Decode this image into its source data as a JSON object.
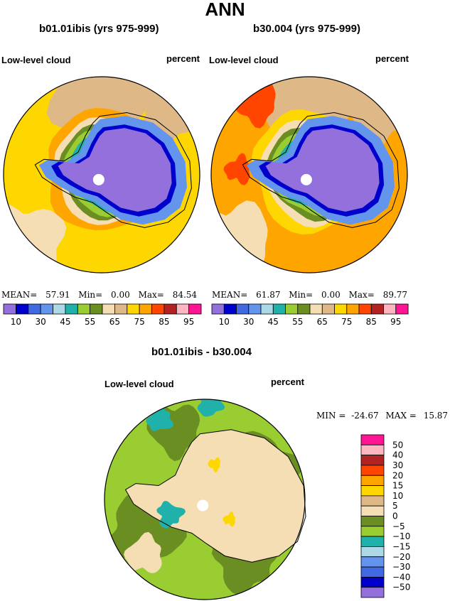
{
  "page": {
    "title": "ANN"
  },
  "colors": {
    "abs_palette": [
      "#9370db",
      "#0000cd",
      "#4169e1",
      "#6495ed",
      "#add8e6",
      "#20b2aa",
      "#9acd32",
      "#6b8e23",
      "#f5deb3",
      "#deb887",
      "#ffd700",
      "#ffa500",
      "#ff4500",
      "#b22222",
      "#ffb6c1",
      "#ff1493"
    ],
    "diff_palette": [
      "#9370db",
      "#0000cd",
      "#4169e1",
      "#6495ed",
      "#add8e6",
      "#20b2aa",
      "#9acd32",
      "#6b8e23",
      "#f5deb3",
      "#deb887",
      "#ffd700",
      "#ffa500",
      "#ff4500",
      "#b22222",
      "#ffb6c1",
      "#ff1493"
    ]
  },
  "chart_data": [
    {
      "type": "heatmap",
      "title": "b01.01ibis (yrs 975-999)",
      "variable": "Low-level cloud",
      "units": "percent",
      "projection": "south polar stereographic",
      "stats": {
        "mean_label": "MEAN=",
        "mean": "57.91",
        "min_label": "Min=",
        "min": "0.00",
        "max_label": "Max=",
        "max": "84.54"
      },
      "colorbar": {
        "orientation": "horizontal",
        "levels": [
          10,
          20,
          30,
          40,
          45,
          50,
          55,
          60,
          65,
          70,
          75,
          80,
          85,
          90,
          95
        ],
        "tick_labels": [
          "10",
          "30",
          "45",
          "55",
          "65",
          "75",
          "85",
          "95"
        ]
      }
    },
    {
      "type": "heatmap",
      "title": "b30.004 (yrs 975-999)",
      "variable": "Low-level cloud",
      "units": "percent",
      "projection": "south polar stereographic",
      "stats": {
        "mean_label": "MEAN=",
        "mean": "61.87",
        "min_label": "Min=",
        "min": "0.00",
        "max_label": "Max=",
        "max": "89.77"
      },
      "colorbar": {
        "orientation": "horizontal",
        "levels": [
          10,
          20,
          30,
          40,
          45,
          50,
          55,
          60,
          65,
          70,
          75,
          80,
          85,
          90,
          95
        ],
        "tick_labels": [
          "10",
          "30",
          "45",
          "55",
          "65",
          "75",
          "85",
          "95"
        ]
      }
    },
    {
      "type": "heatmap",
      "title": "b01.01ibis - b30.004",
      "variable": "Low-level cloud",
      "units": "percent",
      "projection": "south polar stereographic",
      "stats": {
        "min_label": "MIN =",
        "min": "-24.67",
        "max_label": "MAX =",
        "max": "15.87"
      },
      "colorbar": {
        "orientation": "vertical",
        "levels": [
          -50,
          -40,
          -30,
          -20,
          -15,
          -10,
          -5,
          0,
          5,
          10,
          15,
          20,
          30,
          40,
          50
        ],
        "tick_labels": [
          "50",
          "40",
          "30",
          "20",
          "15",
          "10",
          "5",
          "0",
          "−5",
          "−10",
          "−15",
          "−20",
          "−30",
          "−40",
          "−50"
        ]
      }
    }
  ]
}
